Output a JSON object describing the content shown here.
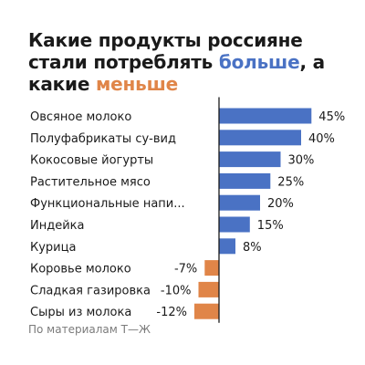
{
  "title": {
    "part1": "Какие продукты россияне стали потреблять ",
    "more": "больше",
    "part2": ", а какие ",
    "less": "меньше"
  },
  "source": "По материалам Т—Ж",
  "colors": {
    "positive": "#4a72c4",
    "negative": "#e08548",
    "more_word": "#4a72c4",
    "less_word": "#e08548",
    "axis": "#1a1a1a",
    "text": "#1a1a1a",
    "source_text": "#7b7b7b"
  },
  "chart_data": {
    "type": "bar",
    "orientation": "horizontal",
    "title": "Какие продукты россияне стали потреблять больше, а какие меньше",
    "unit": "%",
    "categories": [
      "Овсяное молоко",
      "Полуфабрикаты су-вид",
      "Кокосовые йогурты",
      "Растительное мясо",
      "Функциональные напи...",
      "Индейка",
      "Курица",
      "Коровье молоко",
      "Сладкая газировка",
      "Сыры из молока"
    ],
    "values": [
      45,
      40,
      30,
      25,
      20,
      15,
      8,
      -7,
      -10,
      -12
    ],
    "value_labels": [
      "45%",
      "40%",
      "30%",
      "25%",
      "20%",
      "15%",
      "8%",
      "-7%",
      "-10%",
      "-12%"
    ],
    "xlim": [
      -12,
      45
    ],
    "grid": false,
    "legend": "none"
  }
}
